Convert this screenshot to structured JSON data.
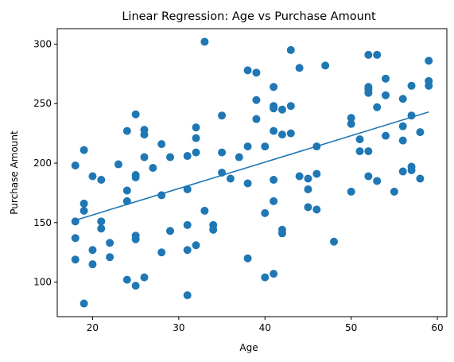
{
  "chart_data": {
    "type": "scatter",
    "title": "Linear Regression: Age vs Purchase Amount",
    "xlabel": "Age",
    "ylabel": "Purchase Amount",
    "xlim": [
      15.9,
      61.1
    ],
    "ylim": [
      71,
      313
    ],
    "xticks": [
      20,
      30,
      40,
      50,
      60
    ],
    "yticks": [
      100,
      150,
      200,
      250,
      300
    ],
    "grid": false,
    "colors": {
      "points": "#1f77b4",
      "line": "#1f77b4"
    },
    "regression_line": {
      "x": [
        18,
        59
      ],
      "y": [
        152,
        243
      ]
    },
    "points": [
      [
        18,
        198
      ],
      [
        18,
        151
      ],
      [
        18,
        137
      ],
      [
        18,
        119
      ],
      [
        19,
        211
      ],
      [
        19,
        166
      ],
      [
        19,
        160
      ],
      [
        19,
        82
      ],
      [
        20,
        189
      ],
      [
        20,
        127
      ],
      [
        20,
        115
      ],
      [
        21,
        186
      ],
      [
        21,
        151
      ],
      [
        21,
        145
      ],
      [
        22,
        133
      ],
      [
        22,
        121
      ],
      [
        23,
        199
      ],
      [
        24,
        227
      ],
      [
        24,
        177
      ],
      [
        24,
        168
      ],
      [
        24,
        102
      ],
      [
        25,
        241
      ],
      [
        25,
        190
      ],
      [
        25,
        188
      ],
      [
        25,
        139
      ],
      [
        25,
        136
      ],
      [
        25,
        97
      ],
      [
        26,
        228
      ],
      [
        26,
        224
      ],
      [
        26,
        205
      ],
      [
        26,
        104
      ],
      [
        27,
        196
      ],
      [
        28,
        216
      ],
      [
        28,
        173
      ],
      [
        28,
        125
      ],
      [
        29,
        205
      ],
      [
        29,
        143
      ],
      [
        31,
        206
      ],
      [
        31,
        178
      ],
      [
        31,
        148
      ],
      [
        31,
        127
      ],
      [
        31,
        89
      ],
      [
        32,
        230
      ],
      [
        32,
        221
      ],
      [
        32,
        209
      ],
      [
        32,
        131
      ],
      [
        33,
        302
      ],
      [
        33,
        160
      ],
      [
        34,
        148
      ],
      [
        34,
        144
      ],
      [
        35,
        240
      ],
      [
        35,
        209
      ],
      [
        35,
        192
      ],
      [
        36,
        187
      ],
      [
        37,
        205
      ],
      [
        38,
        278
      ],
      [
        38,
        214
      ],
      [
        38,
        183
      ],
      [
        38,
        120
      ],
      [
        39,
        276
      ],
      [
        39,
        253
      ],
      [
        39,
        237
      ],
      [
        40,
        214
      ],
      [
        40,
        158
      ],
      [
        40,
        104
      ],
      [
        41,
        264
      ],
      [
        41,
        248
      ],
      [
        41,
        246
      ],
      [
        41,
        227
      ],
      [
        41,
        186
      ],
      [
        41,
        168
      ],
      [
        41,
        107
      ],
      [
        42,
        245
      ],
      [
        42,
        224
      ],
      [
        42,
        144
      ],
      [
        42,
        141
      ],
      [
        43,
        295
      ],
      [
        43,
        248
      ],
      [
        43,
        225
      ],
      [
        44,
        280
      ],
      [
        44,
        189
      ],
      [
        45,
        187
      ],
      [
        45,
        178
      ],
      [
        45,
        163
      ],
      [
        46,
        214
      ],
      [
        46,
        191
      ],
      [
        46,
        161
      ],
      [
        47,
        282
      ],
      [
        48,
        134
      ],
      [
        50,
        238
      ],
      [
        50,
        233
      ],
      [
        50,
        176
      ],
      [
        51,
        220
      ],
      [
        51,
        210
      ],
      [
        52,
        291
      ],
      [
        52,
        264
      ],
      [
        52,
        262
      ],
      [
        52,
        259
      ],
      [
        52,
        210
      ],
      [
        52,
        189
      ],
      [
        53,
        291
      ],
      [
        53,
        247
      ],
      [
        53,
        185
      ],
      [
        54,
        271
      ],
      [
        54,
        257
      ],
      [
        54,
        223
      ],
      [
        55,
        176
      ],
      [
        56,
        254
      ],
      [
        56,
        231
      ],
      [
        56,
        219
      ],
      [
        56,
        193
      ],
      [
        57,
        265
      ],
      [
        57,
        240
      ],
      [
        57,
        197
      ],
      [
        57,
        194
      ],
      [
        58,
        226
      ],
      [
        58,
        187
      ],
      [
        59,
        286
      ],
      [
        59,
        269
      ],
      [
        59,
        265
      ]
    ]
  }
}
